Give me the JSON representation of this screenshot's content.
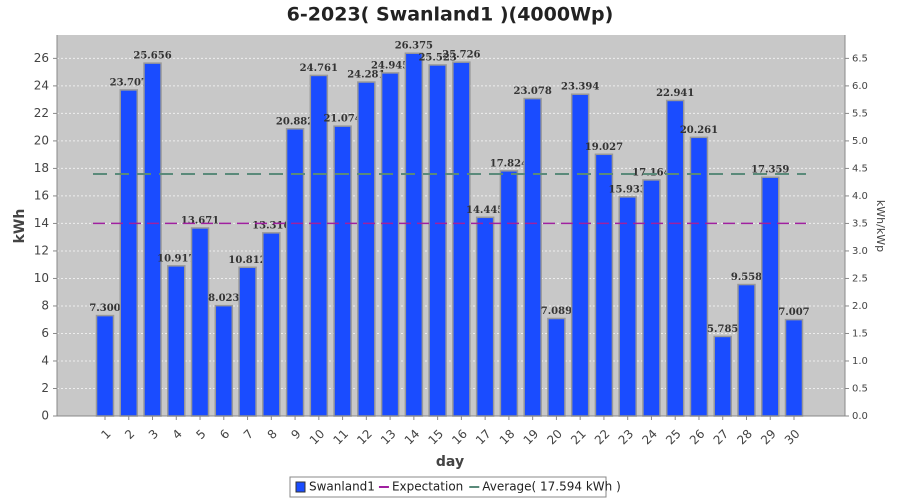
{
  "chart_data": {
    "type": "bar",
    "title": "6-2023( Swanland1 )(4000Wp)",
    "x_label": "day",
    "y_label": "kWh",
    "y2_label": "kWh/kWp",
    "categories": [
      "1",
      "2",
      "3",
      "4",
      "5",
      "6",
      "7",
      "8",
      "9",
      "10",
      "11",
      "12",
      "13",
      "14",
      "15",
      "16",
      "17",
      "18",
      "19",
      "20",
      "21",
      "22",
      "23",
      "24",
      "25",
      "26",
      "27",
      "28",
      "29",
      "30"
    ],
    "series": [
      {
        "name": "Swanland1",
        "color": "#1a4cff",
        "values": [
          7.3,
          23.707,
          25.656,
          10.917,
          13.671,
          8.023,
          10.812,
          13.316,
          20.882,
          24.761,
          21.074,
          24.281,
          24.945,
          26.375,
          25.523,
          25.726,
          14.445,
          17.824,
          23.078,
          7.089,
          23.394,
          19.027,
          15.933,
          17.164,
          22.941,
          20.261,
          5.785,
          9.558,
          17.359,
          7.007
        ],
        "value_labels": [
          "7.300",
          "23.707",
          "25.656",
          "10.917",
          "13.671",
          "8.023",
          "10.812",
          "13.316",
          "20.882",
          "24.761",
          "21.074",
          "24.281",
          "24.945",
          "26.375",
          "25.523",
          "25.726",
          "14.445",
          "17.824",
          "23.078",
          "7.089",
          "23.394",
          "19.027",
          "15.933",
          "17.164",
          "22.941",
          "20.261",
          "5.785",
          "9.558",
          "17.359",
          "7.007"
        ]
      }
    ],
    "lines": [
      {
        "name": "Expectation",
        "color": "#a020a0",
        "value": 14
      },
      {
        "name": "Average( 17.594 kWh )",
        "color": "#5a8a7a",
        "value": 17.594
      }
    ],
    "ylim": [
      0,
      27.7
    ],
    "yticks": [
      0,
      2,
      4,
      6,
      8,
      10,
      12,
      14,
      16,
      18,
      20,
      22,
      24,
      26
    ],
    "y2lim": [
      0,
      6.925
    ],
    "y2ticks": [
      {
        "value": 0,
        "label": "0.0"
      },
      0.5,
      {
        "value": 1,
        "label": "1.0"
      },
      1.5,
      {
        "value": 2,
        "label": "2.0"
      },
      2.5,
      {
        "value": 3,
        "label": "3.0"
      },
      3.5,
      {
        "value": 4,
        "label": "4.0"
      },
      4.5,
      {
        "value": 5,
        "label": "5.0"
      },
      5.5,
      {
        "value": 6,
        "label": "6.0"
      },
      6.5
    ],
    "grid": true
  }
}
